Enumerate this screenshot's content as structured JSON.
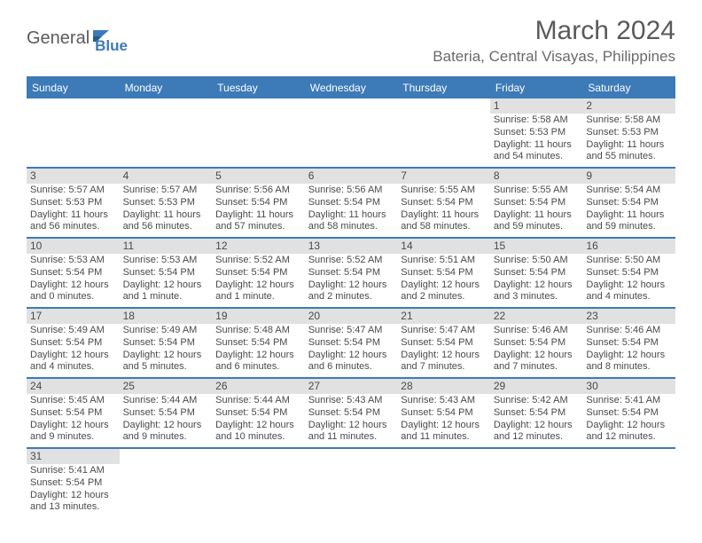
{
  "brand": {
    "name1": "General",
    "name2": "Blue"
  },
  "title": "March 2024",
  "location": "Bateria, Central Visayas, Philippines",
  "colors": {
    "accent": "#3d7ab8",
    "dayband": "#e1e1e1",
    "text": "#4a4a4a",
    "bg": "#ffffff"
  },
  "dayHeaders": [
    "Sunday",
    "Monday",
    "Tuesday",
    "Wednesday",
    "Thursday",
    "Friday",
    "Saturday"
  ],
  "weeks": [
    [
      {
        "n": "",
        "sr": "",
        "ss": "",
        "dl": ""
      },
      {
        "n": "",
        "sr": "",
        "ss": "",
        "dl": ""
      },
      {
        "n": "",
        "sr": "",
        "ss": "",
        "dl": ""
      },
      {
        "n": "",
        "sr": "",
        "ss": "",
        "dl": ""
      },
      {
        "n": "",
        "sr": "",
        "ss": "",
        "dl": ""
      },
      {
        "n": "1",
        "sr": "Sunrise: 5:58 AM",
        "ss": "Sunset: 5:53 PM",
        "dl": "Daylight: 11 hours and 54 minutes."
      },
      {
        "n": "2",
        "sr": "Sunrise: 5:58 AM",
        "ss": "Sunset: 5:53 PM",
        "dl": "Daylight: 11 hours and 55 minutes."
      }
    ],
    [
      {
        "n": "3",
        "sr": "Sunrise: 5:57 AM",
        "ss": "Sunset: 5:53 PM",
        "dl": "Daylight: 11 hours and 56 minutes."
      },
      {
        "n": "4",
        "sr": "Sunrise: 5:57 AM",
        "ss": "Sunset: 5:53 PM",
        "dl": "Daylight: 11 hours and 56 minutes."
      },
      {
        "n": "5",
        "sr": "Sunrise: 5:56 AM",
        "ss": "Sunset: 5:54 PM",
        "dl": "Daylight: 11 hours and 57 minutes."
      },
      {
        "n": "6",
        "sr": "Sunrise: 5:56 AM",
        "ss": "Sunset: 5:54 PM",
        "dl": "Daylight: 11 hours and 58 minutes."
      },
      {
        "n": "7",
        "sr": "Sunrise: 5:55 AM",
        "ss": "Sunset: 5:54 PM",
        "dl": "Daylight: 11 hours and 58 minutes."
      },
      {
        "n": "8",
        "sr": "Sunrise: 5:55 AM",
        "ss": "Sunset: 5:54 PM",
        "dl": "Daylight: 11 hours and 59 minutes."
      },
      {
        "n": "9",
        "sr": "Sunrise: 5:54 AM",
        "ss": "Sunset: 5:54 PM",
        "dl": "Daylight: 11 hours and 59 minutes."
      }
    ],
    [
      {
        "n": "10",
        "sr": "Sunrise: 5:53 AM",
        "ss": "Sunset: 5:54 PM",
        "dl": "Daylight: 12 hours and 0 minutes."
      },
      {
        "n": "11",
        "sr": "Sunrise: 5:53 AM",
        "ss": "Sunset: 5:54 PM",
        "dl": "Daylight: 12 hours and 1 minute."
      },
      {
        "n": "12",
        "sr": "Sunrise: 5:52 AM",
        "ss": "Sunset: 5:54 PM",
        "dl": "Daylight: 12 hours and 1 minute."
      },
      {
        "n": "13",
        "sr": "Sunrise: 5:52 AM",
        "ss": "Sunset: 5:54 PM",
        "dl": "Daylight: 12 hours and 2 minutes."
      },
      {
        "n": "14",
        "sr": "Sunrise: 5:51 AM",
        "ss": "Sunset: 5:54 PM",
        "dl": "Daylight: 12 hours and 2 minutes."
      },
      {
        "n": "15",
        "sr": "Sunrise: 5:50 AM",
        "ss": "Sunset: 5:54 PM",
        "dl": "Daylight: 12 hours and 3 minutes."
      },
      {
        "n": "16",
        "sr": "Sunrise: 5:50 AM",
        "ss": "Sunset: 5:54 PM",
        "dl": "Daylight: 12 hours and 4 minutes."
      }
    ],
    [
      {
        "n": "17",
        "sr": "Sunrise: 5:49 AM",
        "ss": "Sunset: 5:54 PM",
        "dl": "Daylight: 12 hours and 4 minutes."
      },
      {
        "n": "18",
        "sr": "Sunrise: 5:49 AM",
        "ss": "Sunset: 5:54 PM",
        "dl": "Daylight: 12 hours and 5 minutes."
      },
      {
        "n": "19",
        "sr": "Sunrise: 5:48 AM",
        "ss": "Sunset: 5:54 PM",
        "dl": "Daylight: 12 hours and 6 minutes."
      },
      {
        "n": "20",
        "sr": "Sunrise: 5:47 AM",
        "ss": "Sunset: 5:54 PM",
        "dl": "Daylight: 12 hours and 6 minutes."
      },
      {
        "n": "21",
        "sr": "Sunrise: 5:47 AM",
        "ss": "Sunset: 5:54 PM",
        "dl": "Daylight: 12 hours and 7 minutes."
      },
      {
        "n": "22",
        "sr": "Sunrise: 5:46 AM",
        "ss": "Sunset: 5:54 PM",
        "dl": "Daylight: 12 hours and 7 minutes."
      },
      {
        "n": "23",
        "sr": "Sunrise: 5:46 AM",
        "ss": "Sunset: 5:54 PM",
        "dl": "Daylight: 12 hours and 8 minutes."
      }
    ],
    [
      {
        "n": "24",
        "sr": "Sunrise: 5:45 AM",
        "ss": "Sunset: 5:54 PM",
        "dl": "Daylight: 12 hours and 9 minutes."
      },
      {
        "n": "25",
        "sr": "Sunrise: 5:44 AM",
        "ss": "Sunset: 5:54 PM",
        "dl": "Daylight: 12 hours and 9 minutes."
      },
      {
        "n": "26",
        "sr": "Sunrise: 5:44 AM",
        "ss": "Sunset: 5:54 PM",
        "dl": "Daylight: 12 hours and 10 minutes."
      },
      {
        "n": "27",
        "sr": "Sunrise: 5:43 AM",
        "ss": "Sunset: 5:54 PM",
        "dl": "Daylight: 12 hours and 11 minutes."
      },
      {
        "n": "28",
        "sr": "Sunrise: 5:43 AM",
        "ss": "Sunset: 5:54 PM",
        "dl": "Daylight: 12 hours and 11 minutes."
      },
      {
        "n": "29",
        "sr": "Sunrise: 5:42 AM",
        "ss": "Sunset: 5:54 PM",
        "dl": "Daylight: 12 hours and 12 minutes."
      },
      {
        "n": "30",
        "sr": "Sunrise: 5:41 AM",
        "ss": "Sunset: 5:54 PM",
        "dl": "Daylight: 12 hours and 12 minutes."
      }
    ],
    [
      {
        "n": "31",
        "sr": "Sunrise: 5:41 AM",
        "ss": "Sunset: 5:54 PM",
        "dl": "Daylight: 12 hours and 13 minutes."
      },
      {
        "n": "",
        "sr": "",
        "ss": "",
        "dl": ""
      },
      {
        "n": "",
        "sr": "",
        "ss": "",
        "dl": ""
      },
      {
        "n": "",
        "sr": "",
        "ss": "",
        "dl": ""
      },
      {
        "n": "",
        "sr": "",
        "ss": "",
        "dl": ""
      },
      {
        "n": "",
        "sr": "",
        "ss": "",
        "dl": ""
      },
      {
        "n": "",
        "sr": "",
        "ss": "",
        "dl": ""
      }
    ]
  ]
}
